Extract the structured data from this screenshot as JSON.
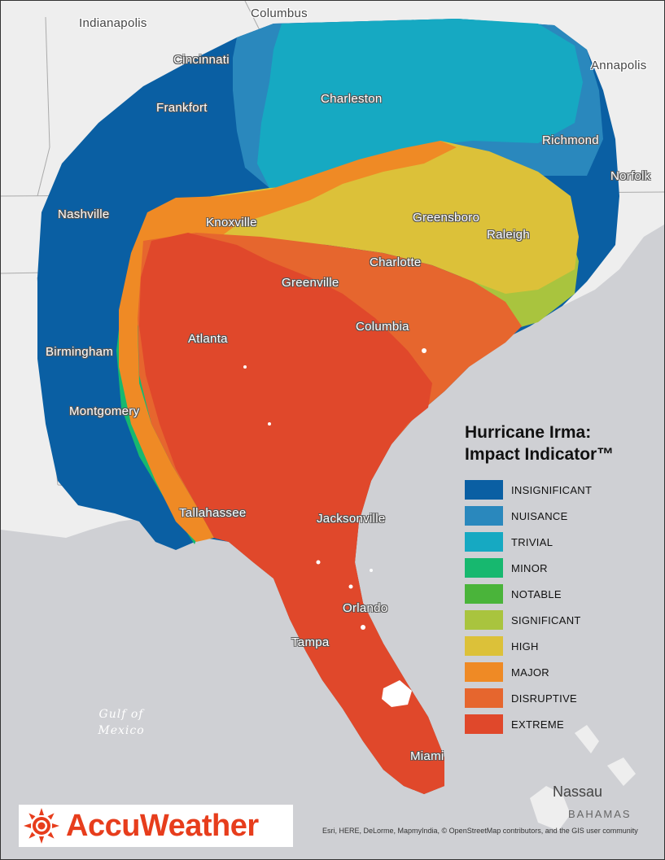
{
  "colors": {
    "insignificant": "#0a5fa3",
    "nuisance": "#2a88bd",
    "trivial": "#16a9c2",
    "minor": "#17b86f",
    "notable": "#4ab43a",
    "significant": "#a9c43e",
    "high": "#dcc139",
    "major": "#ef8a25",
    "disruptive": "#e6662e",
    "extreme": "#e0482b",
    "land": "#eeeeee",
    "water": "#cfd0d4"
  },
  "cities": [
    {
      "name": "Indianapolis",
      "outside": true
    },
    {
      "name": "Columbus",
      "outside": true
    },
    {
      "name": "Cincinnati"
    },
    {
      "name": "Annapolis",
      "outside": true
    },
    {
      "name": "Frankfort"
    },
    {
      "name": "Charleston"
    },
    {
      "name": "Richmond"
    },
    {
      "name": "Norfolk"
    },
    {
      "name": "Nashville"
    },
    {
      "name": "Knoxville"
    },
    {
      "name": "Greensboro"
    },
    {
      "name": "Raleigh"
    },
    {
      "name": "Charlotte"
    },
    {
      "name": "Greenville"
    },
    {
      "name": "Atlanta"
    },
    {
      "name": "Columbia"
    },
    {
      "name": "Birmingham"
    },
    {
      "name": "Montgomery"
    },
    {
      "name": "Tallahassee"
    },
    {
      "name": "Jacksonville"
    },
    {
      "name": "Orlando"
    },
    {
      "name": "Tampa"
    },
    {
      "name": "Miami"
    }
  ],
  "water_labels": {
    "gulf_line1": "Gulf of",
    "gulf_line2": "Mexico"
  },
  "nassau": "Nassau",
  "bahamas": "BAHAMAS",
  "legend": {
    "title_line1": "Hurricane Irma:",
    "title_line2": "Impact Indicator™",
    "items": [
      {
        "label": "INSIGNIFICANT",
        "color": "#0a5fa3"
      },
      {
        "label": "NUISANCE",
        "color": "#2a88bd"
      },
      {
        "label": "TRIVIAL",
        "color": "#16a9c2"
      },
      {
        "label": "MINOR",
        "color": "#17b86f"
      },
      {
        "label": "NOTABLE",
        "color": "#4ab43a"
      },
      {
        "label": "SIGNIFICANT",
        "color": "#a9c43e"
      },
      {
        "label": "HIGH",
        "color": "#dcc139"
      },
      {
        "label": "MAJOR",
        "color": "#ef8a25"
      },
      {
        "label": "DISRUPTIVE",
        "color": "#e6662e"
      },
      {
        "label": "EXTREME",
        "color": "#e0482b"
      }
    ]
  },
  "logo": {
    "brand": "AccuWeather",
    "color": "#e73d1c"
  },
  "attribution": "Esri, HERE, DeLorme, MapmyIndia, © OpenStreetMap contributors, and the GIS user community"
}
